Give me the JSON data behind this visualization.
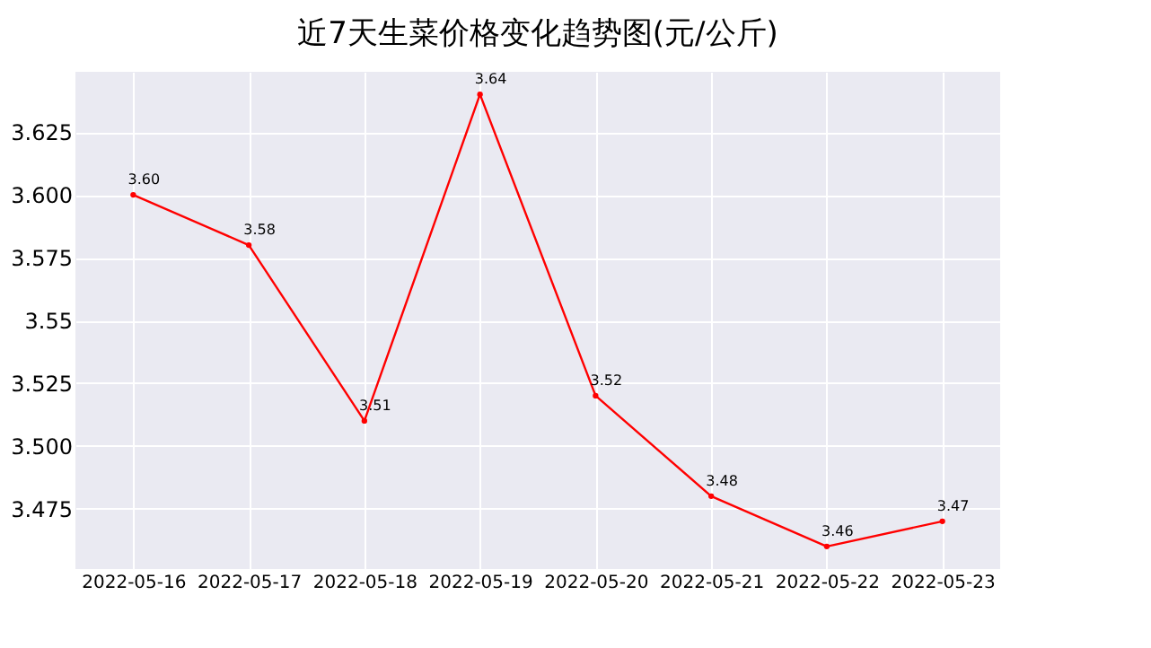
{
  "chart_data": {
    "type": "line",
    "title": "近7天生菜价格变化趋势图(元/公斤)",
    "categories": [
      "2022-05-16",
      "2022-05-17",
      "2022-05-18",
      "2022-05-19",
      "2022-05-20",
      "2022-05-21",
      "2022-05-22",
      "2022-05-23"
    ],
    "series": [
      {
        "color": "#ff0000",
        "values": [
          3.6,
          3.58,
          3.51,
          3.64,
          3.52,
          3.48,
          3.46,
          3.47
        ],
        "value_labels": [
          "3.60",
          "3.58",
          "3.51",
          "3.64",
          "3.52",
          "3.48",
          "3.46",
          "3.47"
        ]
      }
    ],
    "ylim": [
      3.451,
      3.649
    ],
    "yticks": [
      3.475,
      {
        "value": 3.5,
        "label": "3.500"
      },
      3.525,
      3.55,
      3.575,
      {
        "value": 3.6,
        "label": "3.600"
      },
      3.625
    ],
    "grid": true,
    "marker": "circle",
    "line_style": "solid"
  }
}
